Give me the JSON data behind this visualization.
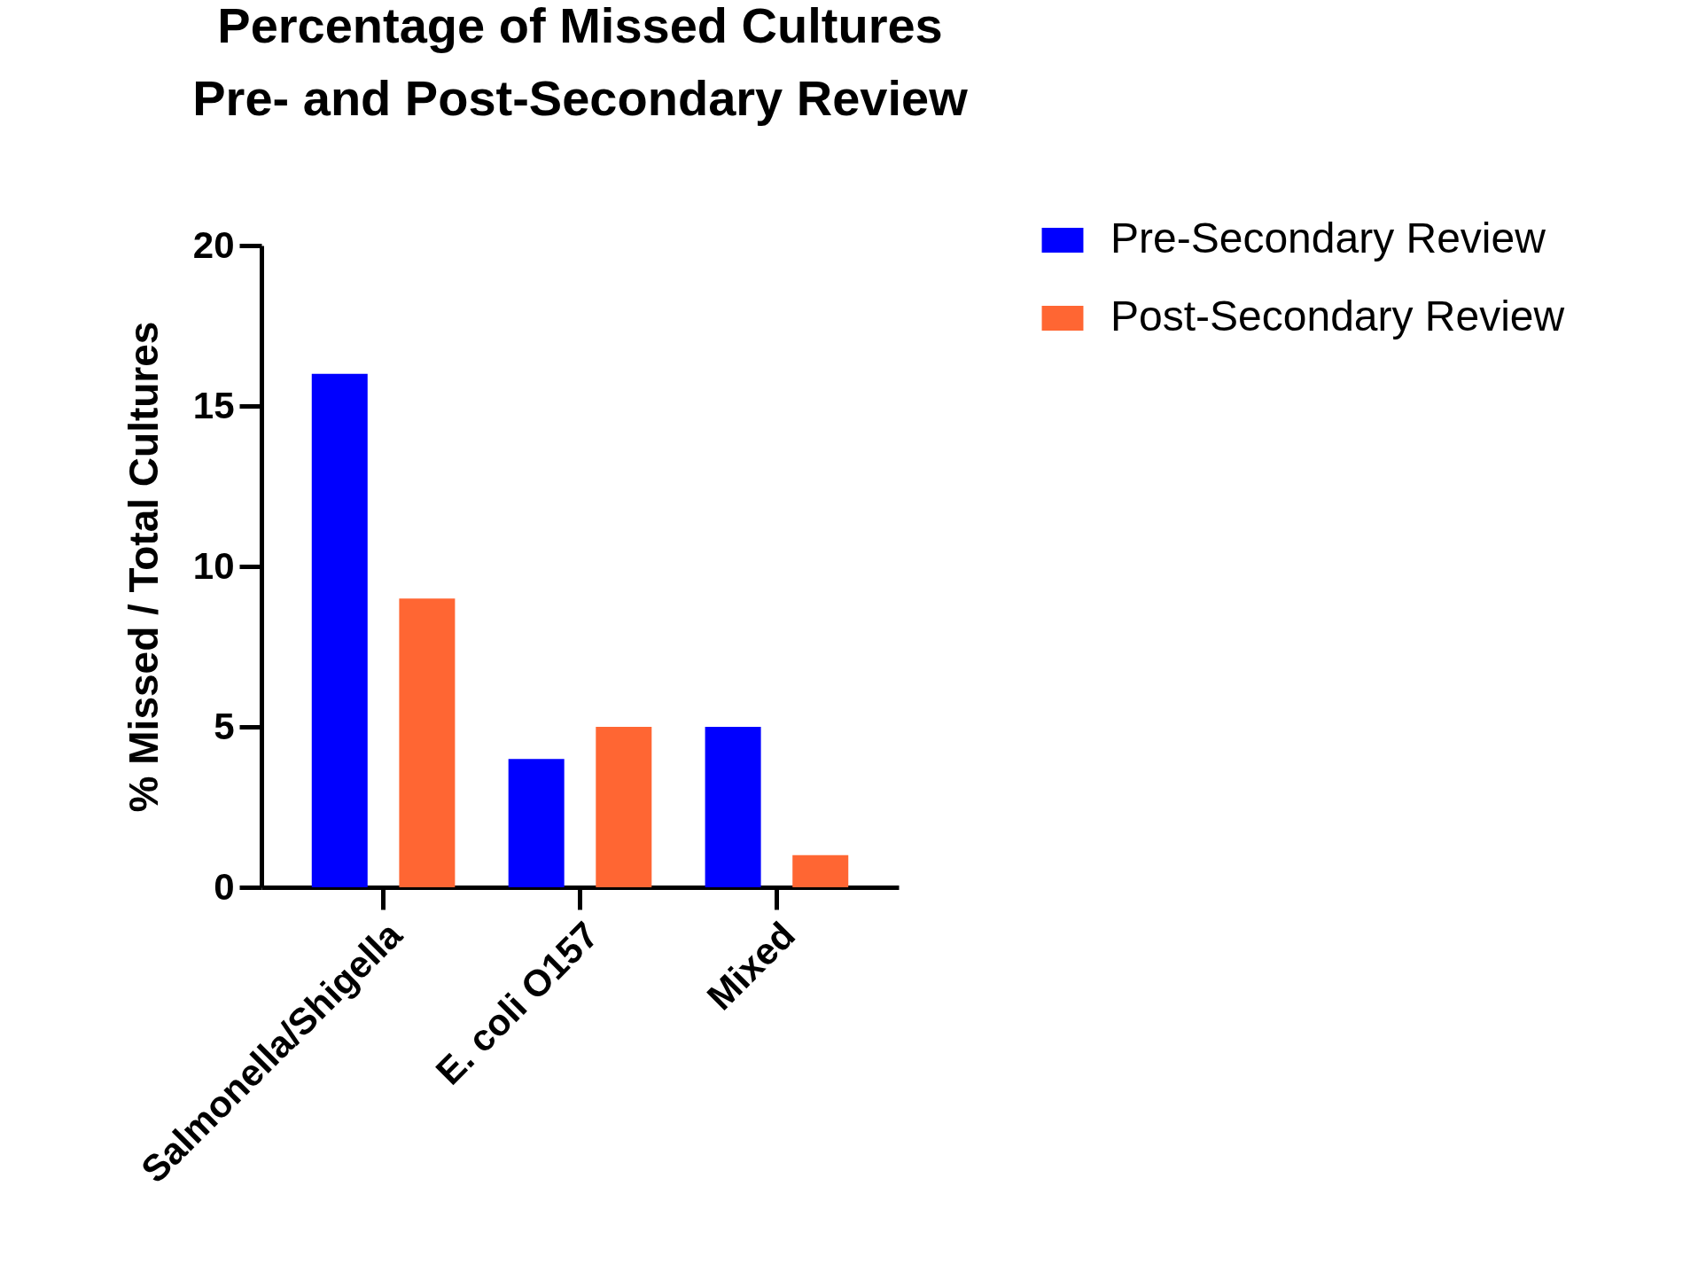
{
  "chart_data": {
    "type": "bar",
    "title": "Percentage of Missed Cultures\nPre- and Post-Secondary Review",
    "ylabel": "% Missed / Total Cultures",
    "categories": [
      "Salmonella/Shigella",
      "E. coli O157",
      "Mixed"
    ],
    "series": [
      {
        "name": "Pre-Secondary Review",
        "color": "#0000ff",
        "values": [
          16,
          4,
          5
        ]
      },
      {
        "name": "Post-Secondary Review",
        "color": "#ff6633",
        "values": [
          9,
          5,
          1
        ]
      }
    ],
    "ylim": [
      0,
      20
    ],
    "yticks": [
      0,
      5,
      10,
      15,
      20
    ],
    "grid": false,
    "legend": "right"
  }
}
